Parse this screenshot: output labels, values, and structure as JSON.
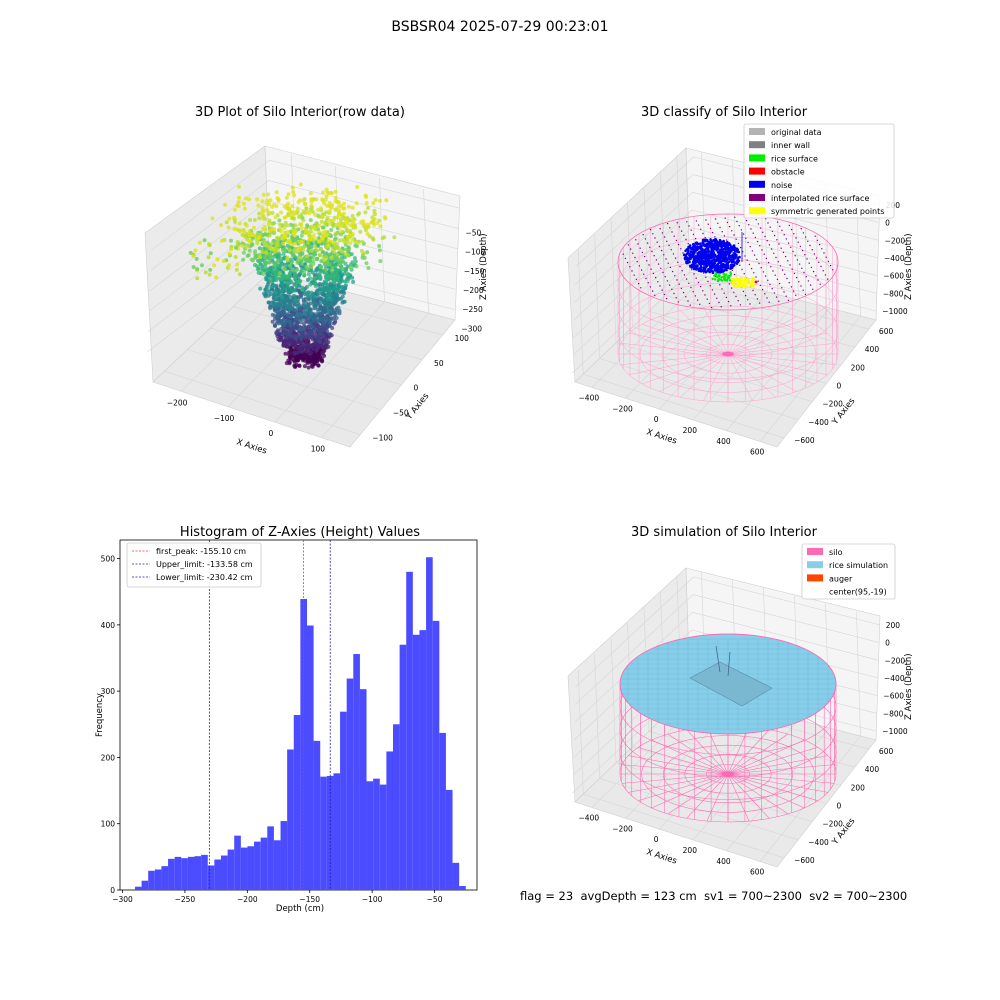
{
  "figure": {
    "suptitle": "BSBSR04 2025-07-29 00:23:01",
    "footer": {
      "flag": "flag = 23",
      "avg_depth": "avgDepth = 123 cm",
      "sv1": "sv1 = 700~2300",
      "sv2": "sv2 = 700~2300"
    }
  },
  "colors": {
    "hist_bar": "#4b4bff",
    "first_peak": "#e8334a",
    "limits": "#1f1fb4",
    "original": "#b3b3b3",
    "inner_wall": "#808080",
    "rice_surface": "#00ee00",
    "obstacle": "#ff0000",
    "noise": "#0000ee",
    "interpolated": "#800080",
    "symmetric": "#ffff00",
    "silo": "#ff69b4",
    "rice_sim": "#87ceeb",
    "auger": "#ff4500"
  },
  "chart_data": [
    {
      "id": "raw",
      "type": "scatter",
      "title": "3D Plot of Silo Interior(row data)",
      "xlabel": "X Axies",
      "ylabel": "Y Axies",
      "zlabel": "Z Axies (Depth)",
      "xticks": [
        "−200",
        "−100",
        "0",
        "100"
      ],
      "yticks": [
        "−100",
        "−50",
        "0",
        "50",
        "100"
      ],
      "zticks": [
        "−300",
        "−250",
        "−200",
        "−150",
        "−100",
        "−50"
      ],
      "zlim": [
        -320,
        -30
      ],
      "colormap": "viridis"
    },
    {
      "id": "classify",
      "type": "scatter",
      "title": "3D classify of Silo Interior",
      "xlabel": "X Axies",
      "ylabel": "Y Axies",
      "zlabel": "Z Axies (Depth)",
      "xticks": [
        "−400",
        "−200",
        "0",
        "200",
        "400",
        "600"
      ],
      "yticks": [
        "−600",
        "−400",
        "−200",
        "0",
        "200",
        "400",
        "600"
      ],
      "zticks": [
        "−1000",
        "−800",
        "−600",
        "−400",
        "−200",
        "0",
        "200"
      ],
      "legend": [
        "original data",
        "inner wall",
        "rice surface",
        "obstacle",
        "noise",
        "interpolated rice surface",
        "symmetric generated points"
      ]
    },
    {
      "id": "hist",
      "type": "bar",
      "title": "Histogram of Z-Axies (Height) Values",
      "xlabel": "Depth (cm)",
      "ylabel": "Frequency",
      "xlim": [
        -302,
        -16
      ],
      "ylim": [
        0,
        528
      ],
      "xticks": [
        -300,
        -250,
        -200,
        -150,
        -100,
        -50
      ],
      "yticks": [
        0,
        100,
        200,
        300,
        400,
        500
      ],
      "bin_start": -290,
      "bin_width": 5.3,
      "values": [
        5,
        14,
        29,
        31,
        36,
        47,
        50,
        48,
        50,
        51,
        53,
        37,
        46,
        52,
        61,
        82,
        64,
        66,
        73,
        79,
        96,
        75,
        104,
        212,
        264,
        439,
        399,
        225,
        171,
        172,
        176,
        269,
        319,
        356,
        303,
        164,
        168,
        159,
        209,
        250,
        370,
        480,
        385,
        392,
        502,
        406,
        237,
        151,
        41,
        6
      ],
      "vlines": [
        {
          "label": "first_peak: -155.10 cm",
          "x": -155.1,
          "color": "first_peak"
        },
        {
          "label": "Upper_limit: -133.58 cm",
          "x": -133.58,
          "color": "limits"
        },
        {
          "label": "Lower_limit: -230.42 cm",
          "x": -230.42,
          "color": "limits"
        }
      ]
    },
    {
      "id": "simulation",
      "type": "scatter",
      "title": "3D simulation of Silo Interior",
      "xlabel": "X Axies",
      "ylabel": "Y Axies",
      "zlabel": "Z Axies (Depth)",
      "xticks": [
        "−400",
        "−200",
        "0",
        "200",
        "400",
        "600"
      ],
      "yticks": [
        "−600",
        "−400",
        "−200",
        "0",
        "200",
        "400",
        "600"
      ],
      "zticks": [
        "−1000",
        "−800",
        "−600",
        "−400",
        "−200",
        "0",
        "200"
      ],
      "legend": [
        "silo",
        "rice simulation",
        "auger",
        "center(95,-19)"
      ]
    }
  ]
}
